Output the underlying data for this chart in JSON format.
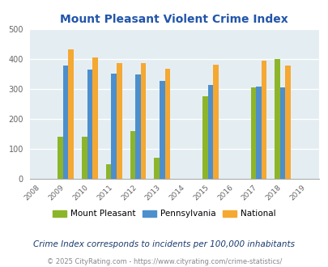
{
  "title": "Mount Pleasant Violent Crime Index",
  "subtitle": "Crime Index corresponds to incidents per 100,000 inhabitants",
  "footer": "© 2025 CityRating.com - https://www.cityrating.com/crime-statistics/",
  "all_years": [
    2008,
    2009,
    2010,
    2011,
    2012,
    2013,
    2014,
    2015,
    2016,
    2017,
    2018,
    2019
  ],
  "data_years": [
    2009,
    2010,
    2011,
    2012,
    2013,
    2015,
    2017,
    2018
  ],
  "mount_pleasant": [
    140,
    140,
    50,
    160,
    70,
    275,
    305,
    400
  ],
  "pennsylvania": [
    380,
    365,
    353,
    350,
    328,
    315,
    310,
    305
  ],
  "national": [
    432,
    405,
    388,
    388,
    368,
    383,
    394,
    380
  ],
  "colors": {
    "mount_pleasant": "#8db52a",
    "pennsylvania": "#4d8fcc",
    "national": "#f5a832"
  },
  "ylim": [
    0,
    500
  ],
  "yticks": [
    0,
    100,
    200,
    300,
    400,
    500
  ],
  "bg_color": "#e4eef2",
  "title_color": "#2255aa",
  "subtitle_color": "#1a3a6e",
  "text_color": "#666666",
  "footer_color": "#888888",
  "bar_width": 0.22,
  "fig_bg": "#ffffff"
}
